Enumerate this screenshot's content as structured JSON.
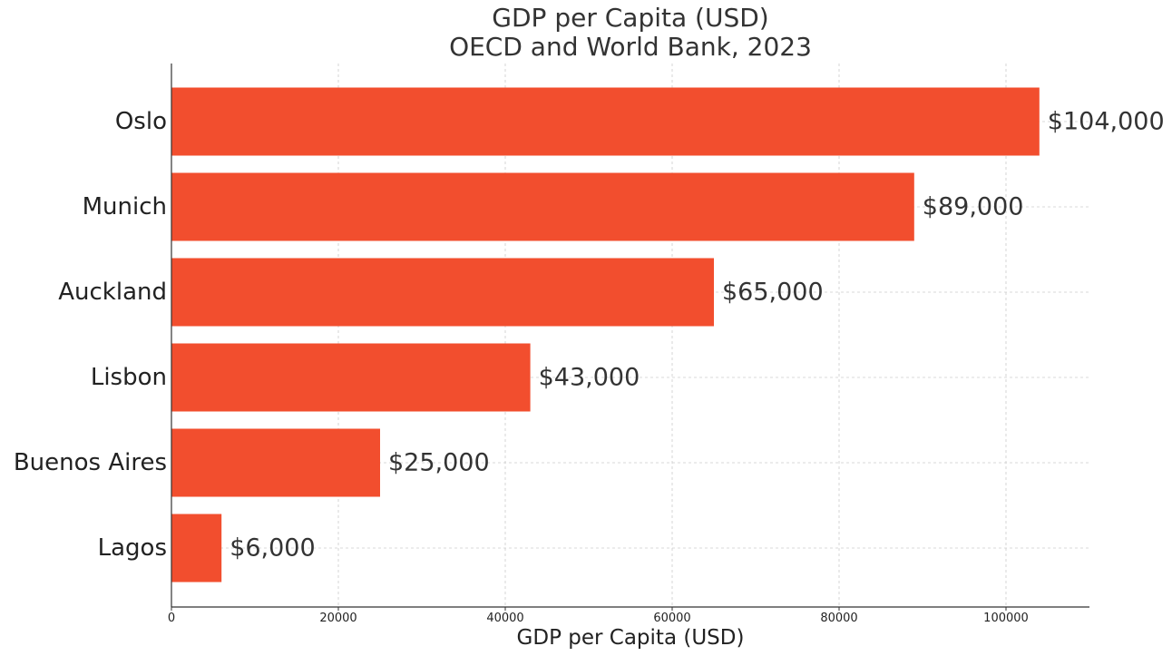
{
  "chart_data": {
    "type": "bar",
    "orientation": "horizontal",
    "title": "GDP per Capita (USD)",
    "subtitle": "OECD and World Bank, 2023",
    "xlabel": "GDP per Capita (USD)",
    "ylabel": "",
    "categories": [
      "Oslo",
      "Munich",
      "Auckland",
      "Lisbon",
      "Buenos Aires",
      "Lagos"
    ],
    "values": [
      104000,
      89000,
      65000,
      43000,
      25000,
      6000
    ],
    "value_labels": [
      "$104,000",
      "$89,000",
      "$65,000",
      "$43,000",
      "$25,000",
      "$6,000"
    ],
    "xlim": [
      0,
      110000
    ],
    "xticks": [
      0,
      20000,
      40000,
      60000,
      80000,
      100000
    ],
    "xtick_labels": [
      "0",
      "20000",
      "40000",
      "60000",
      "80000",
      "100000"
    ],
    "grid": true,
    "legend": "none",
    "colors": {
      "bar": "#f24e2e",
      "text": "#333333",
      "grid": "#cccccc",
      "axis": "#333333"
    }
  }
}
